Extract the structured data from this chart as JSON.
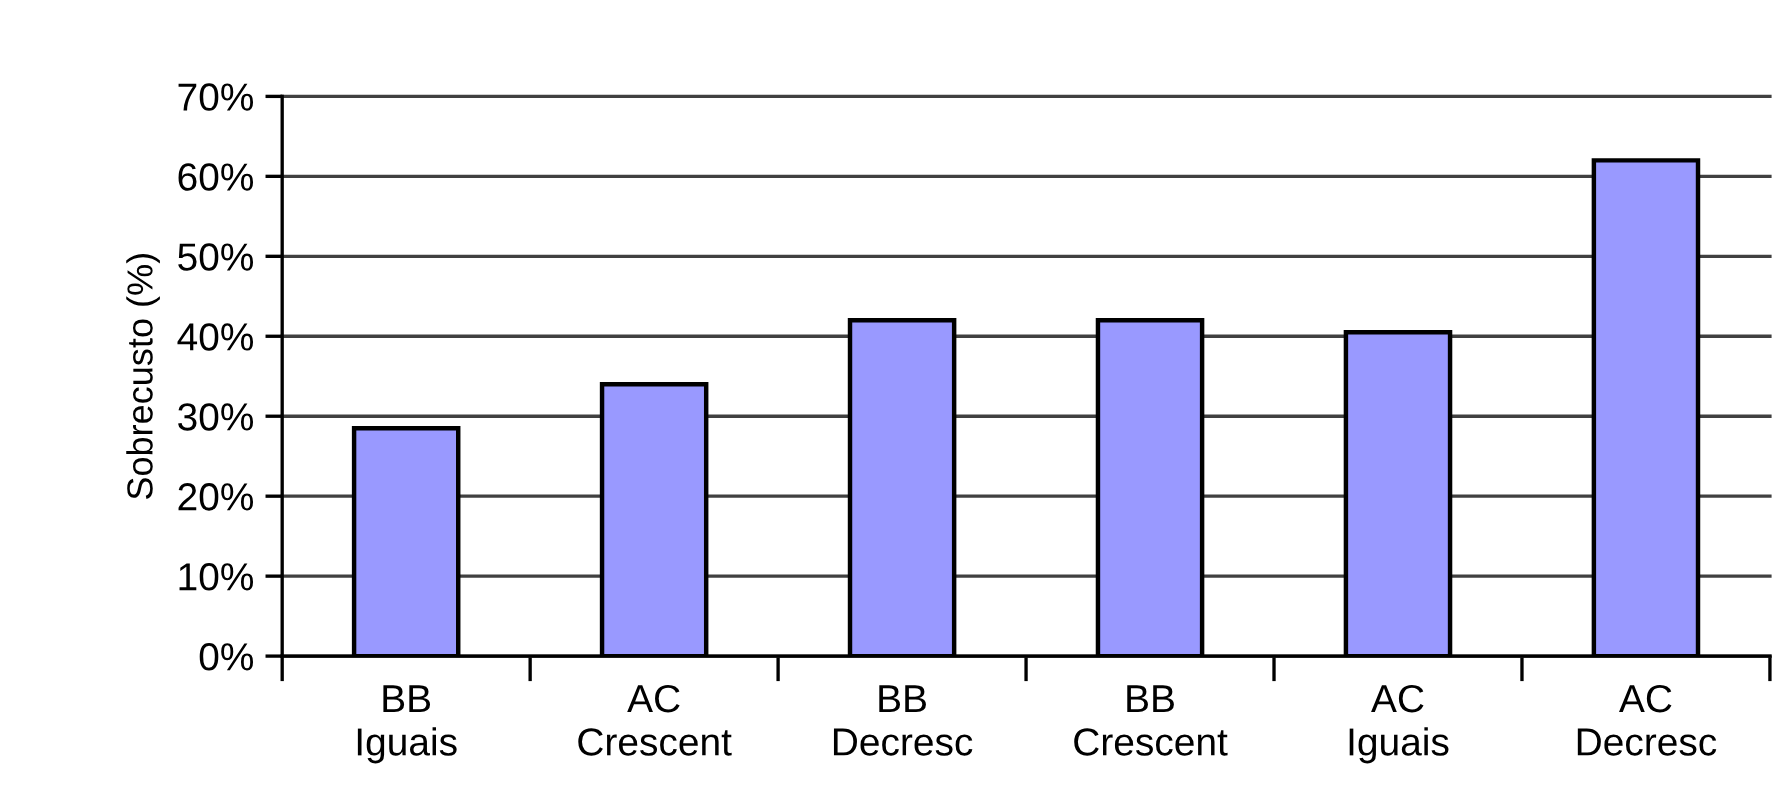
{
  "chart_data": {
    "type": "bar",
    "ylabel": "Sobrecusto (%)",
    "categories": [
      "BB\nIguais",
      "AC\nCrescent",
      "BB\nDecresc",
      "BB\nCrescent",
      "AC\nIguais",
      "AC\nDecresc"
    ],
    "values": [
      28.5,
      34,
      42,
      42,
      40.5,
      62
    ],
    "color": "#9999ff",
    "ylim": [
      0,
      70
    ],
    "yticks": [
      {
        "value": 0,
        "label": "0%"
      },
      {
        "value": 10,
        "label": "10%"
      },
      {
        "value": 20,
        "label": "20%"
      },
      {
        "value": 30,
        "label": "30%"
      },
      {
        "value": 40,
        "label": "40%"
      },
      {
        "value": 50,
        "label": "50%"
      },
      {
        "value": 60,
        "label": "60%"
      },
      {
        "value": 70,
        "label": "70%"
      }
    ],
    "grid": "y",
    "legend": false
  }
}
